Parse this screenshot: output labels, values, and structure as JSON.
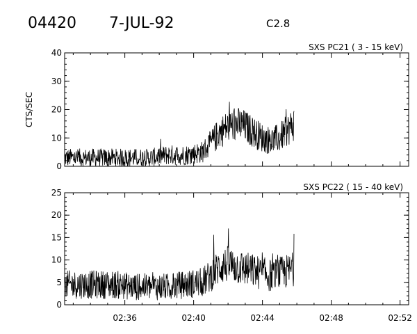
{
  "header": {
    "event_id": "04420",
    "date": "7-JUL-92",
    "flare_class": "C2.8"
  },
  "chart_data": [
    {
      "type": "line",
      "title": "SXS PC21  (  3 - 15 keV)",
      "ylabel": "CTS/SEC",
      "xlabel": "",
      "xlim": [
        "02:32:30",
        "02:52:30"
      ],
      "ylim": [
        0,
        40
      ],
      "yticks": [
        "0",
        "10",
        "20",
        "30",
        "40"
      ],
      "xticks": [
        "02:36",
        "02:40",
        "02:44",
        "02:48",
        "02:52"
      ],
      "show_xtick_labels": false,
      "grid": false,
      "series": [
        {
          "x": [
            "02:32:30",
            "02:33:30",
            "02:34:30",
            "02:35:30",
            "02:36:30",
            "02:37:30",
            "02:38:30",
            "02:39:30",
            "02:40:30",
            "02:41:00",
            "02:41:30",
            "02:42:00",
            "02:42:30",
            "02:43:00",
            "02:43:30",
            "02:44:00",
            "02:44:30",
            "02:45:00",
            "02:45:30",
            "02:45:50"
          ],
          "values": [
            3,
            3,
            3,
            3,
            3,
            3,
            4,
            4,
            5,
            8,
            12,
            14,
            15,
            14,
            12,
            10,
            9,
            10,
            13,
            15
          ]
        }
      ]
    },
    {
      "type": "line",
      "title": "SXS PC22  ( 15 - 40 keV)",
      "ylabel": "",
      "xlabel": "",
      "xlim": [
        "02:32:30",
        "02:52:30"
      ],
      "ylim": [
        0,
        25
      ],
      "yticks": [
        "0",
        "5",
        "10",
        "15",
        "20",
        "25"
      ],
      "xticks": [
        "02:36",
        "02:40",
        "02:44",
        "02:48",
        "02:52"
      ],
      "show_xtick_labels": true,
      "grid": false,
      "series": [
        {
          "x": [
            "02:32:30",
            "02:33:30",
            "02:34:30",
            "02:35:30",
            "02:36:30",
            "02:37:30",
            "02:38:30",
            "02:39:30",
            "02:40:30",
            "02:41:00",
            "02:41:30",
            "02:42:00",
            "02:42:30",
            "02:43:00",
            "02:43:30",
            "02:44:00",
            "02:44:30",
            "02:45:00",
            "02:45:30",
            "02:45:50"
          ],
          "values": [
            4.5,
            4.5,
            4.5,
            4.5,
            4,
            4,
            4,
            4.5,
            5,
            6.5,
            8.5,
            9,
            8.5,
            8,
            7.5,
            7,
            6.5,
            7,
            7.5,
            8
          ]
        }
      ]
    }
  ]
}
